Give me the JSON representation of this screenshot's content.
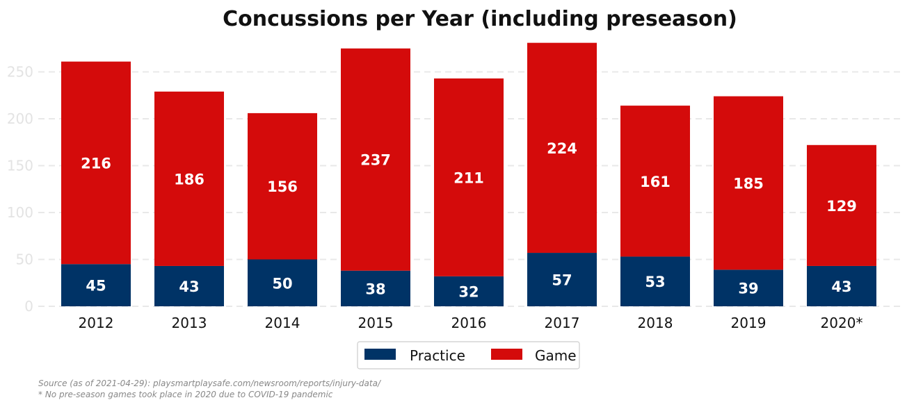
{
  "colors": {
    "practice": "#003366",
    "game": "#d40b0b",
    "grid": "#e8e8e8",
    "tick": "#e3e3e3",
    "text": "#111111",
    "footnote": "#888888"
  },
  "chart_data": {
    "type": "bar",
    "stacked": true,
    "title": "Concussions per Year (including preseason)",
    "xlabel": "",
    "ylabel": "",
    "categories": [
      "2012",
      "2013",
      "2014",
      "2015",
      "2016",
      "2017",
      "2018",
      "2019",
      "2020*"
    ],
    "series": [
      {
        "name": "Practice",
        "values": [
          45,
          43,
          50,
          38,
          32,
          57,
          53,
          39,
          43
        ]
      },
      {
        "name": "Game",
        "values": [
          216,
          186,
          156,
          237,
          211,
          224,
          161,
          185,
          129
        ]
      }
    ],
    "ylim": [
      0,
      280
    ],
    "yticks": [
      "0",
      "50",
      "100",
      "150",
      "200",
      "250"
    ],
    "grid": "horizontal dashed",
    "legend": "bottom-center"
  },
  "footnotes": {
    "source": "Source (as of 2021-04-29): playsmartplaysafe.com/newsroom/reports/injury-data/",
    "note": "* No pre-season games took place in 2020 due to COVID-19 pandemic"
  }
}
